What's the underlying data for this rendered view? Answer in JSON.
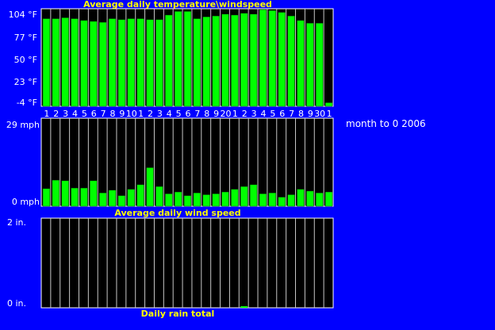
{
  "caption": "month to 0 2006",
  "chart_data": [
    {
      "type": "bar",
      "title": "Average daily temperature\\windspeed",
      "ytick_labels": [
        "104 °F",
        "77 °F",
        "50 °F",
        "23 °F",
        "-4 °F"
      ],
      "ylim": [
        -4,
        104
      ],
      "categories": [
        "1",
        "2",
        "3",
        "4",
        "5",
        "6",
        "7",
        "8",
        "9",
        "10",
        "1",
        "2",
        "3",
        "4",
        "5",
        "6",
        "7",
        "8",
        "9",
        "20",
        "1",
        "2",
        "3",
        "4",
        "5",
        "6",
        "7",
        "8",
        "9",
        "30",
        "1"
      ],
      "values": [
        93,
        93,
        94,
        93,
        91,
        90,
        89,
        93,
        92,
        93,
        93,
        92,
        92,
        97,
        101,
        101,
        93,
        95,
        96,
        98,
        97,
        99,
        98,
        103,
        102,
        100,
        96,
        91,
        88,
        88,
        0
      ],
      "color": "#00ff00"
    },
    {
      "type": "bar",
      "title": "Average daily wind speed",
      "ytick_labels": [
        "29 mph",
        "0 mph"
      ],
      "ylim": [
        0,
        29
      ],
      "values": [
        5.8,
        8.6,
        8.4,
        6.0,
        6.0,
        8.4,
        4.4,
        5.3,
        3.5,
        5.6,
        7.1,
        12.7,
        6.5,
        4.1,
        4.7,
        3.5,
        4.4,
        3.8,
        4.1,
        4.7,
        5.6,
        6.5,
        7.1,
        4.1,
        4.4,
        3.0,
        3.8,
        5.6,
        5.0,
        4.4,
        4.7
      ],
      "color": "#00ff00"
    },
    {
      "type": "bar",
      "title": "Daily rain total",
      "ytick_labels": [
        "2 in.",
        "0 in."
      ],
      "ylim": [
        0,
        2
      ],
      "values": [
        0,
        0,
        0,
        0,
        0,
        0,
        0,
        0,
        0,
        0,
        0,
        0,
        0,
        0,
        0,
        0,
        0,
        0,
        0,
        0,
        0,
        0,
        0,
        0,
        0,
        0,
        0,
        0,
        0,
        0,
        0
      ],
      "trace_values": [
        0,
        0,
        0,
        0,
        0,
        0,
        0,
        0,
        0,
        0,
        0,
        0,
        0,
        0,
        0,
        0,
        0,
        0,
        0,
        0,
        0,
        1,
        0,
        0,
        0,
        0,
        0,
        0,
        0,
        0,
        0
      ],
      "color": "#00ff00"
    }
  ]
}
